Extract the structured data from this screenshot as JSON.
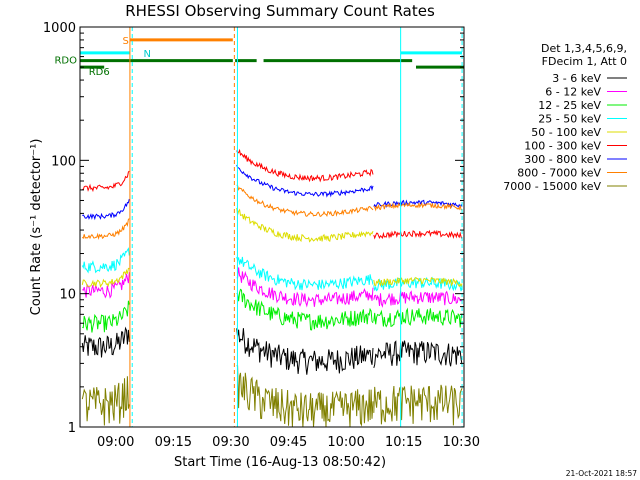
{
  "chart_data": {
    "type": "line",
    "title": "RHESSI Observing Summary Count Rates",
    "xlabel": "Start Time (16-Aug-13 08:50:42)",
    "ylabel": "Count Rate (s⁻¹ detector⁻¹)",
    "yscale": "log",
    "ylim": [
      1,
      1000
    ],
    "xlim_minutes": [
      0,
      100
    ],
    "x_ticks": [
      {
        "m": 9.3,
        "label": "09:00"
      },
      {
        "m": 24.3,
        "label": "09:15"
      },
      {
        "m": 39.3,
        "label": "09:30"
      },
      {
        "m": 54.3,
        "label": "09:45"
      },
      {
        "m": 69.3,
        "label": "10:00"
      },
      {
        "m": 84.3,
        "label": "10:15"
      },
      {
        "m": 99.3,
        "label": "10:30"
      }
    ],
    "y_ticks": [
      {
        "v": 1,
        "label": "1"
      },
      {
        "v": 10,
        "label": "10"
      },
      {
        "v": 100,
        "label": "100"
      },
      {
        "v": 1000,
        "label": "1000"
      }
    ],
    "legend_header": [
      "Det 1,3,4,5,6,9,",
      "FDecim 1, Att 0"
    ],
    "series": [
      {
        "name": "3 - 6 keV",
        "color": "#000000",
        "seg1": 4.0,
        "seg2": 3.5,
        "seg3": 3.5,
        "noise": 0.22
      },
      {
        "name": "6 - 12 keV",
        "color": "#ff00ff",
        "seg1": 10.5,
        "seg2": 10.0,
        "seg3": 9.0,
        "noise": 0.12
      },
      {
        "name": "12 - 25 keV",
        "color": "#00ee00",
        "seg1": 6.0,
        "seg2": 7.0,
        "seg3": 6.5,
        "noise": 0.15
      },
      {
        "name": "25 - 50 keV",
        "color": "#00ffff",
        "seg1": 16.0,
        "seg2": 13.0,
        "seg3": 11.5,
        "noise": 0.1
      },
      {
        "name": "50 - 100 keV",
        "color": "#dddd00",
        "seg1": 12.0,
        "seg2": 29.0,
        "seg3": 12.0,
        "noise": 0.06
      },
      {
        "name": "100 - 300 keV",
        "color": "#ff0000",
        "seg1": 62.0,
        "seg2": 82.0,
        "seg3": 27.0,
        "noise": 0.05
      },
      {
        "name": "300 - 800 keV",
        "color": "#0000ff",
        "seg1": 38.0,
        "seg2": 62.0,
        "seg3": 46.0,
        "noise": 0.04
      },
      {
        "name": "800 - 7000 keV",
        "color": "#ff8000",
        "seg1": 27.0,
        "seg2": 44.0,
        "seg3": 44.0,
        "noise": 0.04
      },
      {
        "name": "7000 - 15000 keV",
        "color": "#808000",
        "seg1": 1.5,
        "seg2": 1.5,
        "seg3": 1.5,
        "noise": 0.35
      }
    ],
    "flag_labels": {
      "s": "S",
      "n": "N",
      "rd0": "RDO",
      "rd6": "RD6"
    },
    "timestamp": "21-Oct-2021 18:57"
  }
}
